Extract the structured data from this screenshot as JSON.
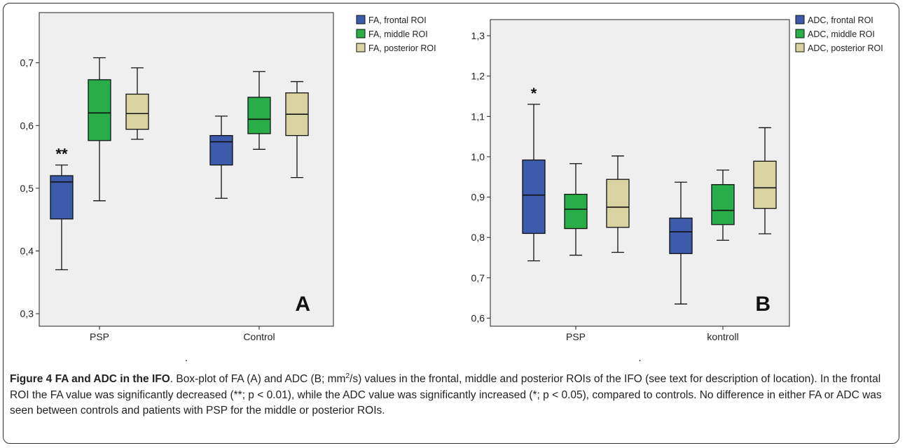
{
  "chart_data": [
    {
      "type": "box",
      "panel_label": "A",
      "categories": [
        "PSP",
        "Control"
      ],
      "ylim": [
        0.28,
        0.78
      ],
      "yticks": [
        0.3,
        0.4,
        0.5,
        0.6,
        0.7
      ],
      "ytick_labels": [
        "0,3",
        "0,4",
        "0,5",
        "0,6",
        "0,7"
      ],
      "legend_placement": "top-right, outside",
      "xlabel": ".",
      "series": [
        {
          "name": "FA, frontal ROI",
          "color": "#3d5aab",
          "boxes": [
            {
              "min": 0.37,
              "q1": 0.451,
              "median": 0.51,
              "q3": 0.52,
              "max": 0.537,
              "annotation": "**"
            },
            {
              "min": 0.484,
              "q1": 0.537,
              "median": 0.574,
              "q3": 0.584,
              "max": 0.615
            }
          ]
        },
        {
          "name": "FA, middle ROI",
          "color": "#28ad48",
          "boxes": [
            {
              "min": 0.48,
              "q1": 0.576,
              "median": 0.62,
              "q3": 0.673,
              "max": 0.708
            },
            {
              "min": 0.562,
              "q1": 0.587,
              "median": 0.61,
              "q3": 0.645,
              "max": 0.686
            }
          ]
        },
        {
          "name": "FA, posterior ROI",
          "color": "#d8d3a0",
          "boxes": [
            {
              "min": 0.578,
              "q1": 0.594,
              "median": 0.619,
              "q3": 0.65,
              "max": 0.692
            },
            {
              "min": 0.517,
              "q1": 0.584,
              "median": 0.618,
              "q3": 0.652,
              "max": 0.67
            }
          ]
        }
      ]
    },
    {
      "type": "box",
      "panel_label": "B",
      "categories": [
        "PSP",
        "kontroll"
      ],
      "ylim": [
        0.58,
        1.34
      ],
      "yticks": [
        0.6,
        0.7,
        0.8,
        0.9,
        1.0,
        1.1,
        1.2,
        1.3
      ],
      "ytick_labels": [
        "0,6",
        "0,7",
        "0,8",
        "0,9",
        "1,0",
        "1,1",
        "1,2",
        "1,3"
      ],
      "legend_placement": "top-right, outside",
      "xlabel": ".",
      "series": [
        {
          "name": "ADC, frontal ROI",
          "color": "#3d5aab",
          "boxes": [
            {
              "min": 0.742,
              "q1": 0.81,
              "median": 0.905,
              "q3": 0.992,
              "max": 1.13,
              "annotation": "*"
            },
            {
              "min": 0.635,
              "q1": 0.76,
              "median": 0.814,
              "q3": 0.848,
              "max": 0.937
            }
          ]
        },
        {
          "name": "ADC, middle ROI",
          "color": "#28ad48",
          "boxes": [
            {
              "min": 0.756,
              "q1": 0.822,
              "median": 0.87,
              "q3": 0.907,
              "max": 0.983
            },
            {
              "min": 0.793,
              "q1": 0.832,
              "median": 0.867,
              "q3": 0.931,
              "max": 0.967
            }
          ]
        },
        {
          "name": "ADC, posterior ROI",
          "color": "#d8d3a0",
          "boxes": [
            {
              "min": 0.763,
              "q1": 0.825,
              "median": 0.875,
              "q3": 0.944,
              "max": 1.002
            },
            {
              "min": 0.809,
              "q1": 0.872,
              "median": 0.923,
              "q3": 0.989,
              "max": 1.072
            }
          ]
        }
      ]
    }
  ],
  "caption": {
    "title": "Figure 4 FA and ADC in the IFO",
    "text_before_superscript": ". Box-plot of FA (A) and ADC (B; mm",
    "superscript": "2",
    "text_after_superscript": "/s) values in the frontal, middle and posterior ROIs of the IFO (see text for description of location). In the frontal ROI the FA value was significantly decreased (**; p < 0.01), while the ADC value was significantly increased (*; p < 0.05), compared to controls. No difference in either FA or ADC was seen between controls and patients with PSP for the middle or posterior ROIs."
  }
}
